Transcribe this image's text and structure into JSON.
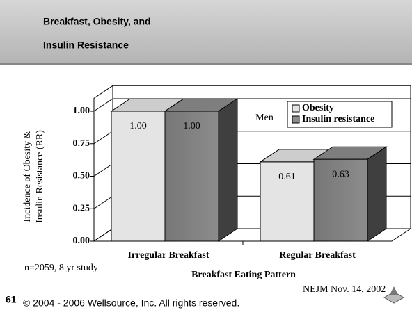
{
  "slide": {
    "title_lines": [
      "Breakfast, Obesity, and",
      "Insulin Resistance"
    ],
    "number": 61,
    "copyright": "© 2004 - 2006 Wellsource, Inc. All rights reserved."
  },
  "chart_data": {
    "type": "bar3d",
    "categories": [
      "Irregular Breakfast",
      "Regular Breakfast"
    ],
    "series": [
      {
        "name": "Obesity",
        "color": "#e4e4e4",
        "values": [
          1.0,
          0.61
        ],
        "value_labels": [
          "1.00",
          "0.61"
        ]
      },
      {
        "name": "Insulin resistance",
        "color": "#8c8c8c",
        "values": [
          1.0,
          0.63
        ],
        "value_labels": [
          "1.00",
          "0.63"
        ]
      }
    ],
    "ylabel": [
      "Incidence of Obesity &",
      "Insulin Resistance (RR)"
    ],
    "xlabel": "Breakfast Eating Pattern",
    "ylim": [
      0,
      1.1
    ],
    "yticks": [
      {
        "value": 0,
        "label": "0.00"
      },
      {
        "value": 0.25,
        "label": "0.25"
      },
      {
        "value": 0.5,
        "label": "0.50"
      },
      {
        "value": 0.75,
        "label": "0.75"
      },
      {
        "value": 1,
        "label": "1.00"
      }
    ],
    "grid": true,
    "annotations": [
      "Men",
      "n=2059, 8 yr study",
      "NEJM Nov. 14, 2002"
    ]
  }
}
